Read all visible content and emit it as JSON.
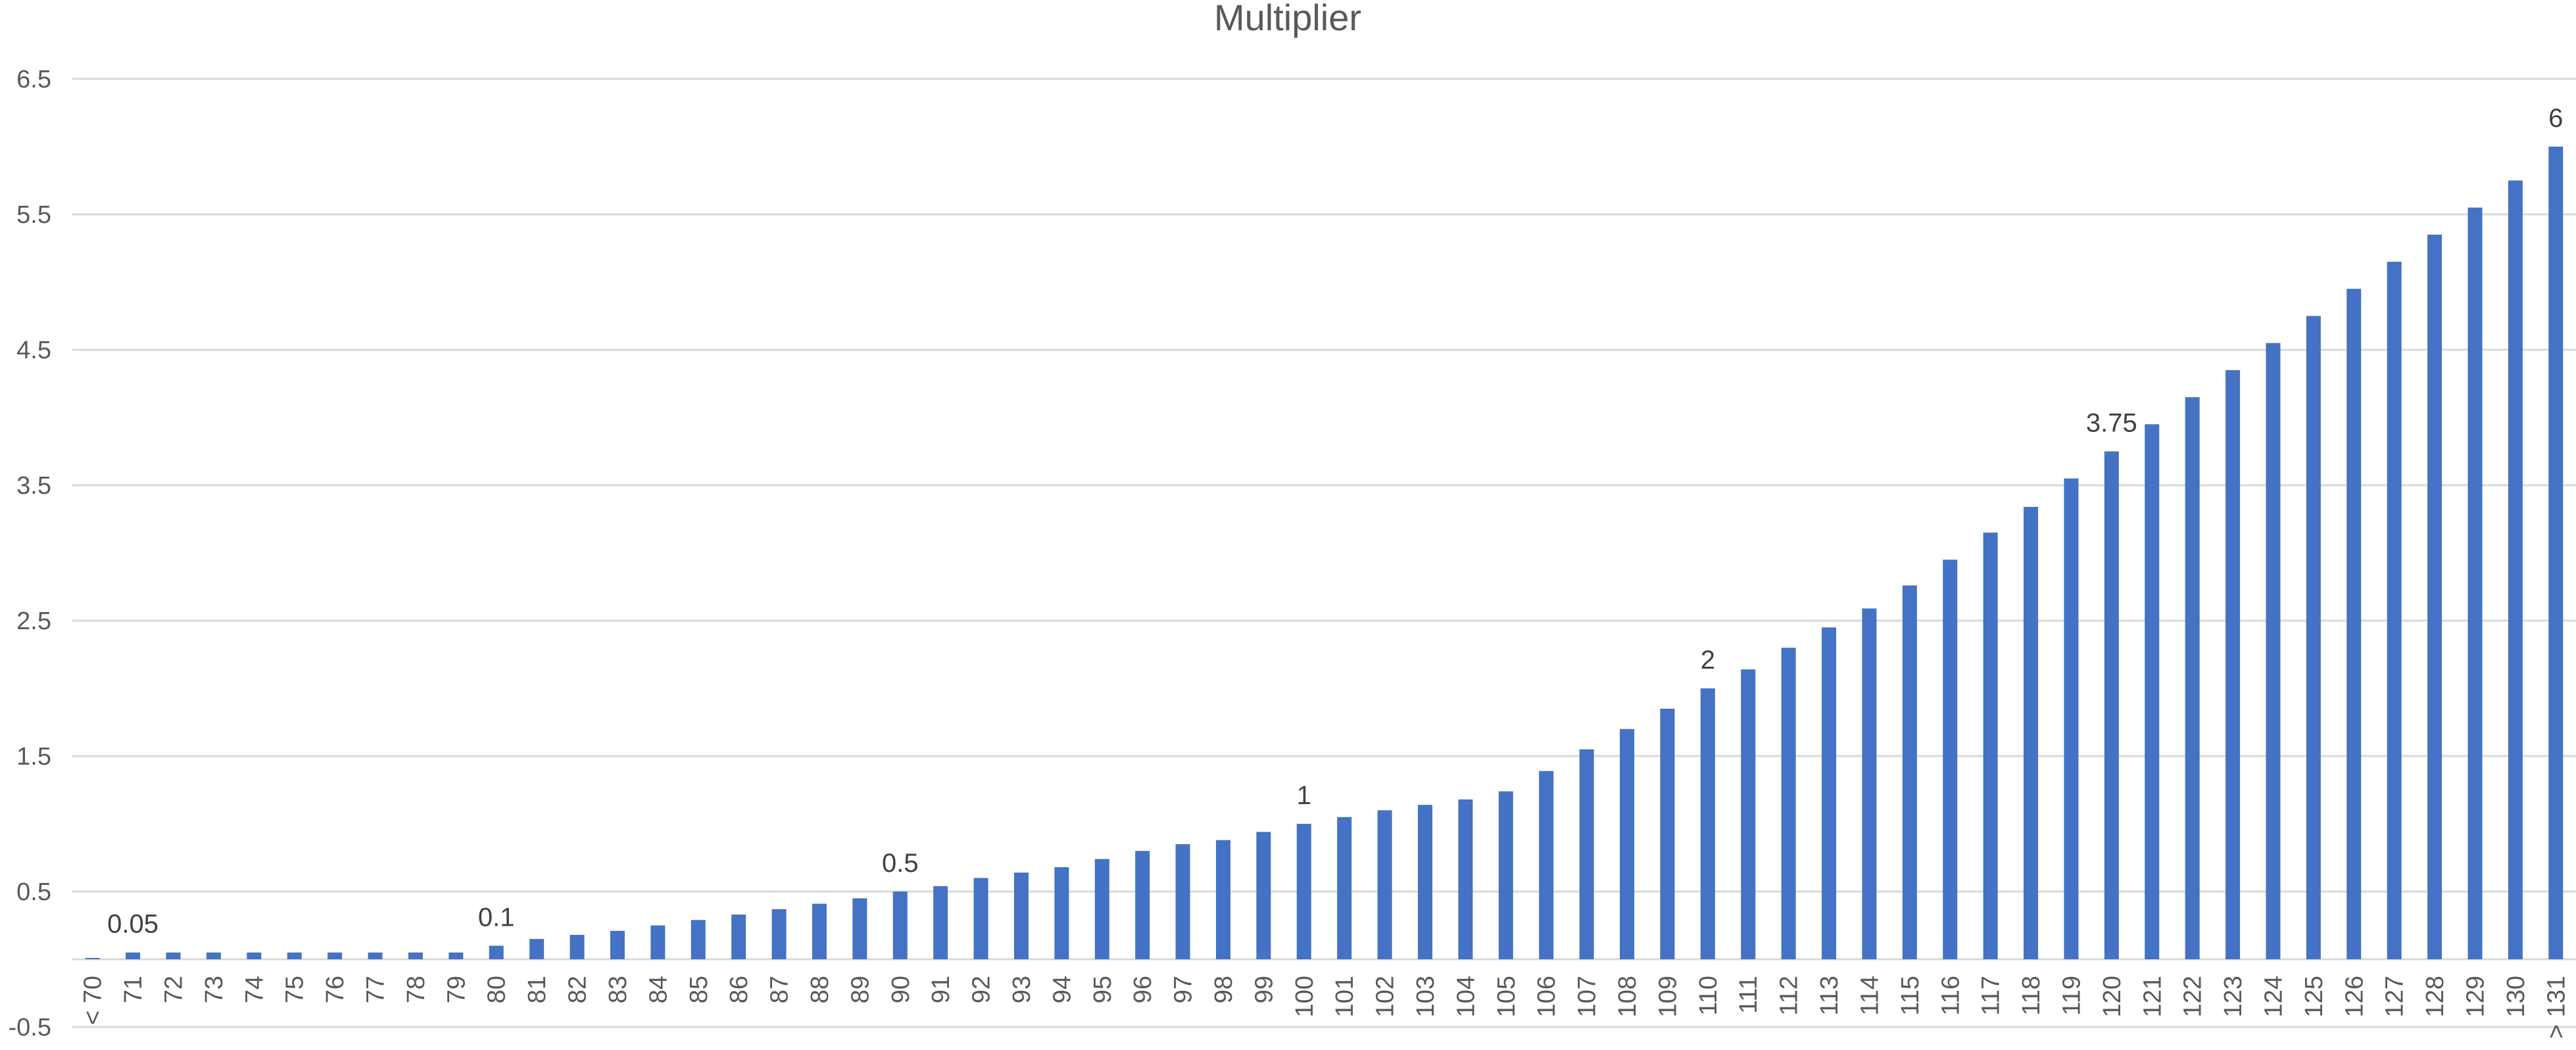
{
  "chart_data": {
    "type": "bar",
    "title": "Multiplier",
    "xlabel": "",
    "ylabel": "",
    "ylim": [
      -0.5,
      6.5
    ],
    "yticks": [
      "-0.5",
      "0.5",
      "1.5",
      "2.5",
      "3.5",
      "4.5",
      "5.5",
      "6.5"
    ],
    "grid": true,
    "legend": "none",
    "bar_color": "#4472c4",
    "categories": [
      "< 70",
      "71",
      "72",
      "73",
      "74",
      "75",
      "76",
      "77",
      "78",
      "79",
      "80",
      "81",
      "82",
      "83",
      "84",
      "85",
      "86",
      "87",
      "88",
      "89",
      "90",
      "91",
      "92",
      "93",
      "94",
      "95",
      "96",
      "97",
      "98",
      "99",
      "100",
      "101",
      "102",
      "103",
      "104",
      "105",
      "106",
      "107",
      "108",
      "109",
      "110",
      "111",
      "112",
      "113",
      "114",
      "115",
      "116",
      "117",
      "118",
      "119",
      "120",
      "121",
      "122",
      "123",
      "124",
      "125",
      "126",
      "127",
      "128",
      "129",
      "130",
      "> 131"
    ],
    "values": [
      0.01,
      0.05,
      0.05,
      0.05,
      0.05,
      0.05,
      0.05,
      0.05,
      0.05,
      0.05,
      0.1,
      0.15,
      0.18,
      0.21,
      0.25,
      0.29,
      0.33,
      0.37,
      0.41,
      0.45,
      0.5,
      0.54,
      0.6,
      0.64,
      0.68,
      0.74,
      0.8,
      0.85,
      0.88,
      0.94,
      1,
      1.05,
      1.1,
      1.14,
      1.18,
      1.24,
      1.39,
      1.55,
      1.7,
      1.85,
      2,
      2.14,
      2.3,
      2.45,
      2.59,
      2.76,
      2.95,
      3.15,
      3.34,
      3.55,
      3.75,
      3.95,
      4.15,
      4.35,
      4.55,
      4.75,
      4.95,
      5.15,
      5.35,
      5.55,
      5.75,
      6
    ],
    "data_labels": [
      {
        "category": "71",
        "text": "0.05"
      },
      {
        "category": "80",
        "text": "0.1"
      },
      {
        "category": "90",
        "text": "0.5"
      },
      {
        "category": "100",
        "text": "1"
      },
      {
        "category": "110",
        "text": "2"
      },
      {
        "category": "120",
        "text": "3.75"
      },
      {
        "category": "> 131",
        "text": "6"
      }
    ]
  }
}
